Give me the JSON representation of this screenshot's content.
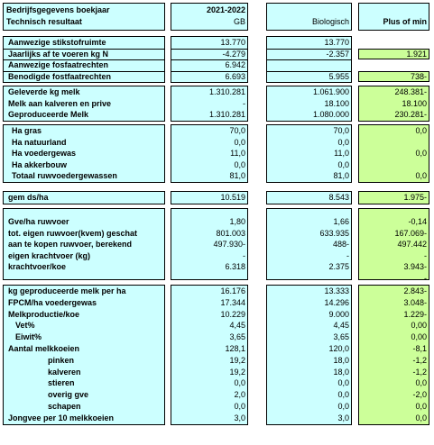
{
  "header": {
    "title1": "Bedrijfsgegevens boekjaar",
    "title2": "Technisch resultaat",
    "col1_year": "2021-2022",
    "col1_sub": "GB",
    "col2": "Biologisch",
    "col3": "Plus of min"
  },
  "sec1": [
    {
      "label": "Aanwezige stikstofruimte",
      "v1": "13.770",
      "v2": "13.770",
      "v3": ""
    },
    {
      "label": "Jaarlijks af te voeren kg N",
      "v1": "-4.279",
      "v2": "-2.357",
      "v3": "1.921"
    },
    {
      "label": "Aanwezige fosfaatrechten",
      "v1": "6.942",
      "v2": "",
      "v3": ""
    },
    {
      "label": "Benodigde fostfaatrechten",
      "v1": "6.693",
      "v2": "5.955",
      "v3": "738-"
    }
  ],
  "sec2": [
    {
      "label": "Geleverde kg melk",
      "v1": "1.310.281",
      "v2": "1.061.900",
      "v3": "248.381-"
    },
    {
      "label": "Melk aan kalveren en prive",
      "v1": "-",
      "v2": "18.100",
      "v3": "18.100"
    },
    {
      "label": "Geproduceerde Melk",
      "v1": "1.310.281",
      "v2": "1.080.000",
      "v3": "230.281-"
    }
  ],
  "sec3": [
    {
      "label": "Ha gras",
      "v1": "70,0",
      "v2": "70,0",
      "v3": "0,0"
    },
    {
      "label": "Ha natuurland",
      "v1": "0,0",
      "v2": "0,0",
      "v3": ""
    },
    {
      "label": "Ha voedergewas",
      "v1": "11,0",
      "v2": "11,0",
      "v3": "0,0"
    },
    {
      "label": "Ha akkerbouw",
      "v1": "0,0",
      "v2": "0,0",
      "v3": ""
    },
    {
      "label": "Totaal ruwvoedergewassen",
      "v1": "81,0",
      "v2": "81,0",
      "v3": "0,0"
    }
  ],
  "sec4": [
    {
      "label": "gem ds/ha",
      "v1": "10.519",
      "v2": "8.543",
      "v3": "1.975-"
    }
  ],
  "sec5": [
    {
      "label": "Gve/ha ruwvoer",
      "v1": "1,80",
      "v2": "1,66",
      "v3": "-0,14"
    },
    {
      "label": "tot. eigen ruwvoer(kvem) geschat",
      "v1": "801.003",
      "v2": "633.935",
      "v3": "167.069-"
    },
    {
      "label": "aan te kopen ruwvoer, berekend",
      "v1": "497.930-",
      "v2": "488-",
      "v3": "497.442"
    },
    {
      "label": "eigen krachtvoer (kg)",
      "v1": "-",
      "v2": "-",
      "v3": "-"
    },
    {
      "label": "krachtvoer/koe",
      "v1": "6.318",
      "v2": "2.375",
      "v3": "3.943-"
    },
    {
      "label": "",
      "v1": "",
      "v2": "",
      "v3": "-"
    }
  ],
  "sec6": [
    {
      "label": "kg geproduceerde melk per ha",
      "v1": "16.176",
      "v2": "13.333",
      "v3": "2.843-",
      "ind": 0
    },
    {
      "label": "FPCM/ha voedergewas",
      "v1": "17.344",
      "v2": "14.296",
      "v3": "3.048-",
      "ind": 0
    },
    {
      "label": "Melkproductie/koe",
      "v1": "10.229",
      "v2": "9.000",
      "v3": "1.229-",
      "ind": 0
    },
    {
      "label": "Vet%",
      "v1": "4,45",
      "v2": "4,45",
      "v3": "0,00",
      "ind": 8
    },
    {
      "label": "Eiwit%",
      "v1": "3,65",
      "v2": "3,65",
      "v3": "0,00",
      "ind": 8
    },
    {
      "label": "Aantal melkkoeien",
      "v1": "128,1",
      "v2": "120,0",
      "v3": "-8,1",
      "ind": 0
    },
    {
      "label": "pinken",
      "v1": "19,2",
      "v2": "18,0",
      "v3": "-1,2",
      "ind": 44
    },
    {
      "label": "kalveren",
      "v1": "19,2",
      "v2": "18,0",
      "v3": "-1,2",
      "ind": 44
    },
    {
      "label": "stieren",
      "v1": "0,0",
      "v2": "0,0",
      "v3": "0,0",
      "ind": 44
    },
    {
      "label": "overig gve",
      "v1": "2,0",
      "v2": "0,0",
      "v3": "-2,0",
      "ind": 44
    },
    {
      "label": "schapen",
      "v1": "0,0",
      "v2": "0,0",
      "v3": "0,0",
      "ind": 44
    },
    {
      "label": "Jongvee per 10 melkkoeien",
      "v1": "3,0",
      "v2": "3,0",
      "v3": "0,0",
      "ind": 0
    }
  ]
}
